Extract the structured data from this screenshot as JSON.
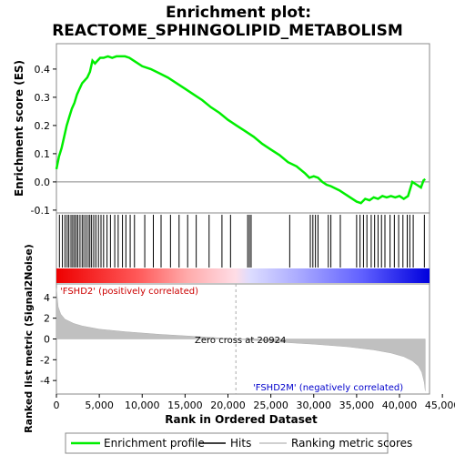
{
  "chart_data": {
    "type": "line",
    "title_line1": "Enrichment plot:",
    "title_line2": "REACTOME_SPHINGOLIPID_METABOLISM",
    "es_ylabel": "Enrichment score (ES)",
    "metric_ylabel": "Ranked list metric (Signal2Noise)",
    "xlabel": "Rank in Ordered Dataset",
    "xlim": [
      0,
      43500
    ],
    "es_ylim": [
      -0.11,
      0.49
    ],
    "metric_ylim": [
      -5.3,
      5.3
    ],
    "x_ticks": [
      0,
      5000,
      10000,
      15000,
      20000,
      25000,
      30000,
      35000,
      40000,
      45000
    ],
    "x_tick_labels": [
      "0",
      "5,000",
      "10,000",
      "15,000",
      "20,000",
      "25,000",
      "30,000",
      "35,000",
      "40,000",
      "45,000"
    ],
    "es_ticks": [
      -0.1,
      0.0,
      0.1,
      0.2,
      0.3,
      0.4
    ],
    "es_tick_labels": [
      "-0.1",
      "0.0",
      "0.1",
      "0.2",
      "0.3",
      "0.4"
    ],
    "metric_ticks": [
      -4,
      -2,
      0,
      2,
      4
    ],
    "metric_tick_labels": [
      "-4",
      "-2",
      "0",
      "2",
      "4"
    ],
    "positive_label": "'FSHD2' (positively correlated)",
    "negative_label": "'FSHD2M' (negatively correlated)",
    "zero_cross_label": "Zero cross at 20924",
    "zero_cross": 20924,
    "total_genes": 43000,
    "enrichment_profile": {
      "name": "Enrichment profile",
      "color": "#00ee00",
      "x": [
        0,
        300,
        600,
        900,
        1200,
        1500,
        1800,
        2100,
        2400,
        2700,
        3000,
        3300,
        3600,
        3900,
        4200,
        4500,
        4800,
        5100,
        5500,
        6000,
        6500,
        7000,
        7500,
        8000,
        8500,
        9000,
        10000,
        11000,
        12000,
        13000,
        14000,
        15000,
        16000,
        17000,
        18000,
        19000,
        20000,
        21000,
        22000,
        23000,
        24000,
        25000,
        26000,
        27000,
        28000,
        29000,
        29500,
        30000,
        30500,
        31000,
        31500,
        32000,
        33000,
        34000,
        35000,
        35500,
        36000,
        36500,
        37000,
        37500,
        38000,
        38500,
        39000,
        39500,
        40000,
        40500,
        41000,
        41500,
        42000,
        42500,
        42800,
        43000
      ],
      "y": [
        0.045,
        0.09,
        0.12,
        0.16,
        0.2,
        0.23,
        0.26,
        0.28,
        0.31,
        0.33,
        0.35,
        0.36,
        0.37,
        0.39,
        0.43,
        0.42,
        0.43,
        0.44,
        0.44,
        0.445,
        0.44,
        0.445,
        0.445,
        0.445,
        0.44,
        0.43,
        0.41,
        0.4,
        0.385,
        0.37,
        0.35,
        0.33,
        0.31,
        0.29,
        0.265,
        0.245,
        0.22,
        0.2,
        0.18,
        0.16,
        0.135,
        0.115,
        0.095,
        0.07,
        0.055,
        0.03,
        0.015,
        0.02,
        0.015,
        0.0,
        -0.01,
        -0.015,
        -0.03,
        -0.05,
        -0.07,
        -0.075,
        -0.06,
        -0.065,
        -0.055,
        -0.06,
        -0.05,
        -0.055,
        -0.05,
        -0.055,
        -0.05,
        -0.06,
        -0.05,
        0.0,
        -0.01,
        -0.02,
        0.005,
        0.01
      ]
    },
    "hits_name": "Hits",
    "hit_positions": [
      350,
      700,
      1000,
      1250,
      1450,
      1700,
      1900,
      2100,
      2300,
      2500,
      2750,
      3000,
      3200,
      3450,
      3700,
      3900,
      4100,
      4350,
      4600,
      4900,
      5200,
      5500,
      5900,
      6300,
      6800,
      7200,
      7700,
      8100,
      8600,
      9100,
      10300,
      11300,
      12200,
      13300,
      14300,
      15300,
      16300,
      17800,
      19300,
      20300,
      22300,
      22500,
      22700,
      27200,
      29600,
      29900,
      30200,
      30500,
      31700,
      32000,
      33100,
      35000,
      35400,
      35800,
      36200,
      36700,
      37100,
      37500,
      37900,
      38300,
      38900,
      39400,
      39900,
      40400,
      40900,
      41200,
      41600,
      42900
    ],
    "metric_name": "Ranking metric scores",
    "metric_curve": {
      "x": [
        0,
        200,
        500,
        1000,
        2000,
        3000,
        5000,
        8000,
        12000,
        16000,
        20924,
        25000,
        30000,
        34000,
        37000,
        39000,
        40500,
        41500,
        42200,
        42600,
        42900,
        43000
      ],
      "y": [
        4.9,
        3.1,
        2.4,
        1.9,
        1.5,
        1.25,
        0.95,
        0.7,
        0.45,
        0.25,
        0.0,
        -0.25,
        -0.5,
        -0.75,
        -1.05,
        -1.35,
        -1.7,
        -2.1,
        -2.6,
        -3.2,
        -4.2,
        -5.0
      ]
    },
    "legend": [
      "Enrichment profile",
      "Hits",
      "Ranking metric scores"
    ],
    "grid": false
  }
}
